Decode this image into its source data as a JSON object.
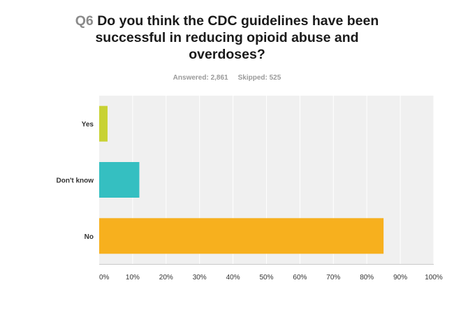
{
  "question": {
    "number": "Q6",
    "text": "Do you think the CDC guidelines have been successful in reducing opioid abuse and overdoses?"
  },
  "stats": {
    "answered": "Answered: 2,861",
    "skipped": "Skipped: 525"
  },
  "chart_data": {
    "type": "bar",
    "orientation": "horizontal",
    "categories": [
      "Yes",
      "Don't know",
      "No"
    ],
    "values": [
      2.5,
      12,
      85
    ],
    "colors": [
      "#c8d234",
      "#35bfc1",
      "#f7b01e"
    ],
    "xlim": [
      0,
      100
    ],
    "ticks": [
      0,
      10,
      20,
      30,
      40,
      50,
      60,
      70,
      80,
      90,
      100
    ],
    "tick_labels": [
      "0%",
      "10%",
      "20%",
      "30%",
      "40%",
      "50%",
      "60%",
      "70%",
      "80%",
      "90%",
      "100%"
    ],
    "grid": true,
    "background": "#f0f0f0",
    "grid_color": "#ffffff"
  }
}
